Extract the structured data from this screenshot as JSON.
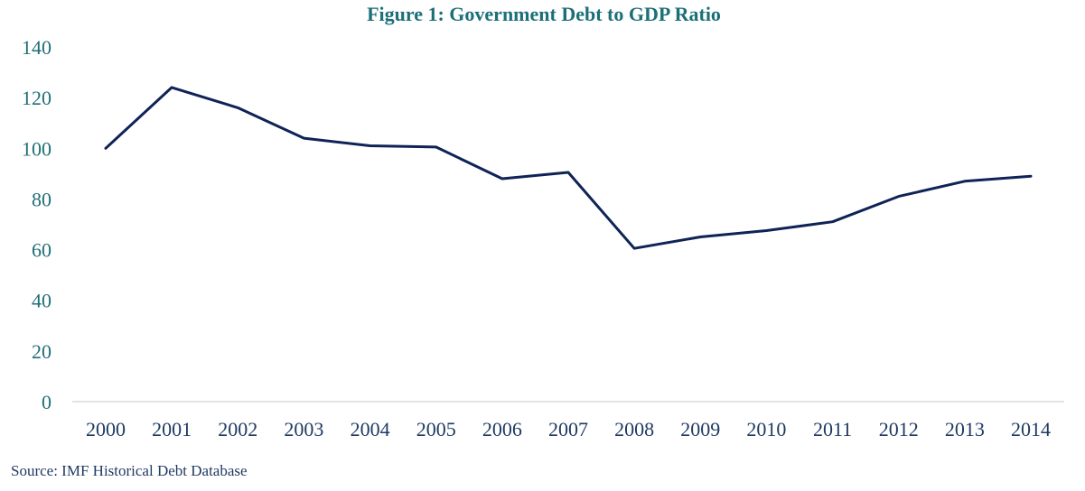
{
  "chart_data": {
    "type": "line",
    "title": "Figure 1: Government Debt to GDP Ratio",
    "xlabel": "",
    "ylabel": "",
    "categories": [
      "2000",
      "2001",
      "2002",
      "2003",
      "2004",
      "2005",
      "2006",
      "2007",
      "2008",
      "2009",
      "2010",
      "2011",
      "2012",
      "2013",
      "2014"
    ],
    "series": [
      {
        "values": [
          100,
          124,
          116,
          104,
          101,
          100.5,
          88,
          90.5,
          60.5,
          65,
          67.5,
          71,
          81,
          87,
          89
        ]
      }
    ],
    "ylim": [
      0,
      140
    ],
    "yticks": [
      0,
      20,
      40,
      60,
      80,
      100,
      120,
      140
    ],
    "grid": false,
    "line_color": "#0f2357"
  },
  "source": "Source: IMF Historical Debt Database"
}
